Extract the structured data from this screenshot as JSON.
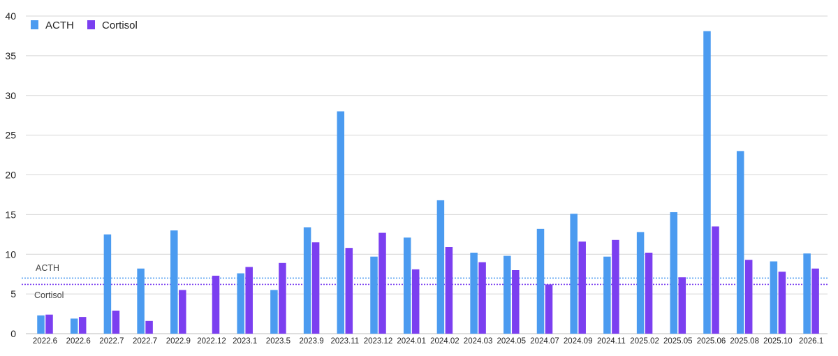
{
  "chart_data": {
    "type": "bar",
    "title": "",
    "xlabel": "",
    "ylabel": "",
    "ylim": [
      0,
      40
    ],
    "yticks": [
      0,
      5,
      10,
      15,
      20,
      25,
      30,
      35,
      40
    ],
    "grid": true,
    "legend_position": "top-left",
    "categories": [
      "2022.6",
      "2022.6",
      "2022.7",
      "2022.7",
      "2022.9",
      "2022.12",
      "2023.1",
      "2023.5",
      "2023.9",
      "2023.11",
      "2023.12",
      "2024.01",
      "2024.02",
      "2024.03",
      "2024.05",
      "2024.07",
      "2024.09",
      "2024.11",
      "2025.02",
      "2025.05",
      "2025.06",
      "2025.08",
      "2025.10",
      "2026.1"
    ],
    "series": [
      {
        "name": "ACTH",
        "color": "#4B9BF0",
        "values": [
          2.3,
          1.9,
          12.5,
          8.2,
          13.0,
          null,
          7.6,
          5.5,
          13.4,
          28.0,
          9.7,
          12.1,
          16.8,
          10.2,
          9.8,
          13.2,
          15.1,
          9.7,
          12.8,
          15.3,
          38.1,
          23.0,
          9.1,
          10.1
        ]
      },
      {
        "name": "Cortisol",
        "color": "#7B3FF0",
        "values": [
          2.4,
          2.1,
          2.9,
          1.6,
          5.5,
          7.3,
          8.4,
          8.9,
          11.5,
          10.8,
          12.7,
          8.1,
          10.9,
          9.0,
          8.0,
          6.2,
          11.6,
          11.8,
          10.2,
          7.1,
          13.5,
          9.3,
          7.8,
          8.2
        ]
      }
    ],
    "reference_lines": [
      {
        "label": "ACTH",
        "value": 7.0,
        "color": "#4B9BF0"
      },
      {
        "label": "Cortisol",
        "value": 6.2,
        "color": "#7B3FF0"
      }
    ]
  }
}
